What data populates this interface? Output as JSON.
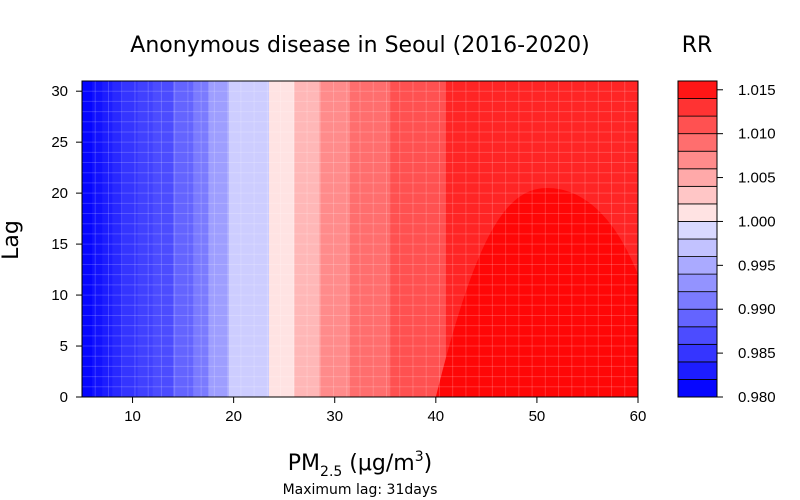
{
  "chart_data": {
    "type": "heatmap",
    "title": "Anonymous disease in Seoul (2016-2020)",
    "xlabel": {
      "base": "PM",
      "sub": "2.5",
      "unit_open": " (μg/m",
      "sup": "3",
      "unit_close": ")"
    },
    "ylabel": "Lag",
    "note": "Maximum lag: 31days",
    "xlim": [
      5,
      60
    ],
    "ylim": [
      0,
      31
    ],
    "x_ticks": [
      10,
      20,
      30,
      40,
      50,
      60
    ],
    "y_ticks": [
      0,
      5,
      10,
      15,
      20,
      25,
      30
    ],
    "colorbar": {
      "title": "RR",
      "levels": [
        0.98,
        0.981,
        0.982,
        0.983,
        0.984,
        0.985,
        0.986,
        0.987,
        0.988,
        0.989,
        0.99,
        0.991,
        0.992,
        0.993,
        0.994,
        0.995,
        0.996,
        0.997,
        0.998,
        0.999,
        1.0,
        1.001,
        1.002,
        1.003,
        1.004,
        1.005,
        1.006,
        1.007,
        1.008,
        1.009,
        1.01,
        1.011,
        1.012,
        1.013,
        1.014,
        1.015,
        1.016
      ],
      "tick_values": [
        0.98,
        0.985,
        0.99,
        0.995,
        1.0,
        1.005,
        1.01,
        1.015
      ],
      "tick_labels": [
        "0.980",
        "0.985",
        "0.990",
        "0.995",
        "1.000",
        "1.005",
        "1.010",
        "1.015"
      ]
    },
    "color_scale": {
      "low": "#0000FF",
      "mid": "#FFFFFF",
      "high": "#FF0000"
    },
    "x_contour_positions": [
      6,
      7,
      8,
      9,
      10.5,
      12,
      14,
      16,
      17.5,
      19.5,
      23.5,
      26,
      28.5,
      31.5,
      35.5,
      41
    ],
    "rr_at_contours": [
      0.981,
      0.982,
      0.983,
      0.984,
      0.985,
      0.986,
      0.988,
      0.99,
      0.993,
      0.997,
      1.0,
      1.003,
      1.006,
      1.008,
      1.01,
      1.013
    ],
    "region_high": {
      "peak_x": 51,
      "peak_lag": 20.5,
      "x_range": [
        40,
        62
      ],
      "rr": 1.015
    },
    "region_top": {
      "peak_x": 52,
      "peak_lag": 1,
      "rr": 1.016
    }
  }
}
